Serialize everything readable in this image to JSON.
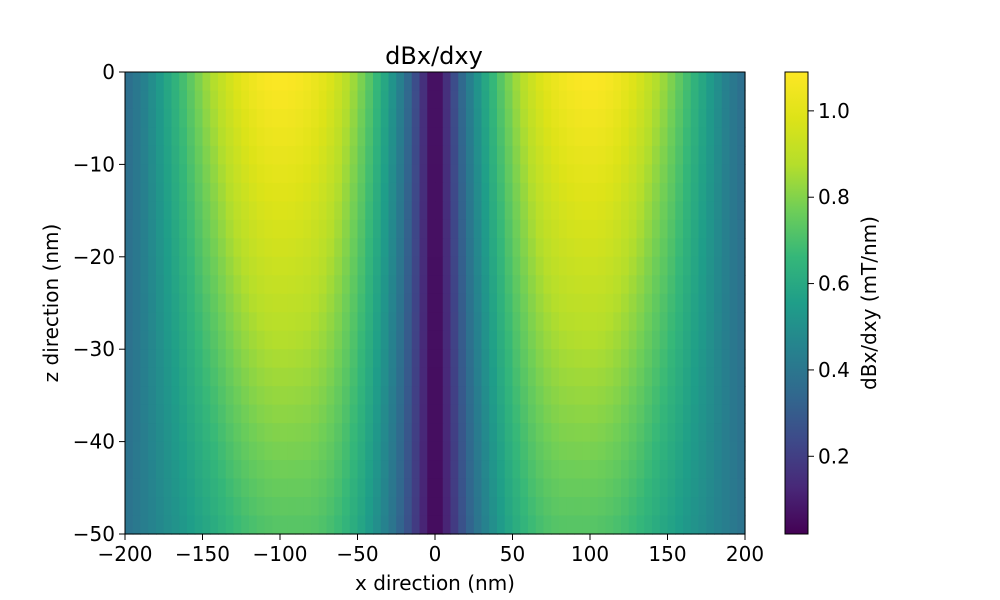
{
  "chart_data": {
    "type": "heatmap",
    "title": "dBx/dxy",
    "xlabel": "x direction (nm)",
    "ylabel": "z direction (nm)",
    "xlim": [
      -200,
      200
    ],
    "ylim": [
      -50,
      0
    ],
    "x_ticks": [
      -200,
      -150,
      -100,
      -50,
      0,
      50,
      100,
      150,
      200
    ],
    "x_tick_labels": [
      "−200",
      "−150",
      "−100",
      "−50",
      "0",
      "50",
      "100",
      "150",
      "200"
    ],
    "y_ticks": [
      0,
      -10,
      -20,
      -30,
      -40,
      -50
    ],
    "y_tick_labels": [
      "0",
      "−10",
      "−20",
      "−30",
      "−40",
      "−50"
    ],
    "colormap": "viridis",
    "colorbar": {
      "label": "dBx/dxy (mT/nm)",
      "range": [
        0.02,
        1.09
      ],
      "ticks": [
        0.2,
        0.4,
        0.6,
        0.8,
        1.0
      ],
      "tick_labels": [
        "0.2",
        "0.4",
        "0.6",
        "0.8",
        "1.0"
      ]
    },
    "x_profile": {
      "x": [
        0,
        10,
        20,
        30,
        40,
        50,
        60,
        70,
        80,
        90,
        100,
        110,
        120,
        130,
        140,
        150,
        160,
        170,
        180,
        190,
        200
      ],
      "z_0": [
        0.02,
        0.2,
        0.4,
        0.56,
        0.7,
        0.82,
        0.92,
        1.0,
        1.05,
        1.08,
        1.09,
        1.08,
        1.04,
        0.98,
        0.9,
        0.82,
        0.72,
        0.62,
        0.52,
        0.42,
        0.36
      ],
      "z_-50": [
        0.02,
        0.15,
        0.3,
        0.42,
        0.52,
        0.6,
        0.66,
        0.7,
        0.72,
        0.72,
        0.72,
        0.71,
        0.69,
        0.66,
        0.62,
        0.58,
        0.54,
        0.5,
        0.46,
        0.42,
        0.38
      ]
    }
  }
}
